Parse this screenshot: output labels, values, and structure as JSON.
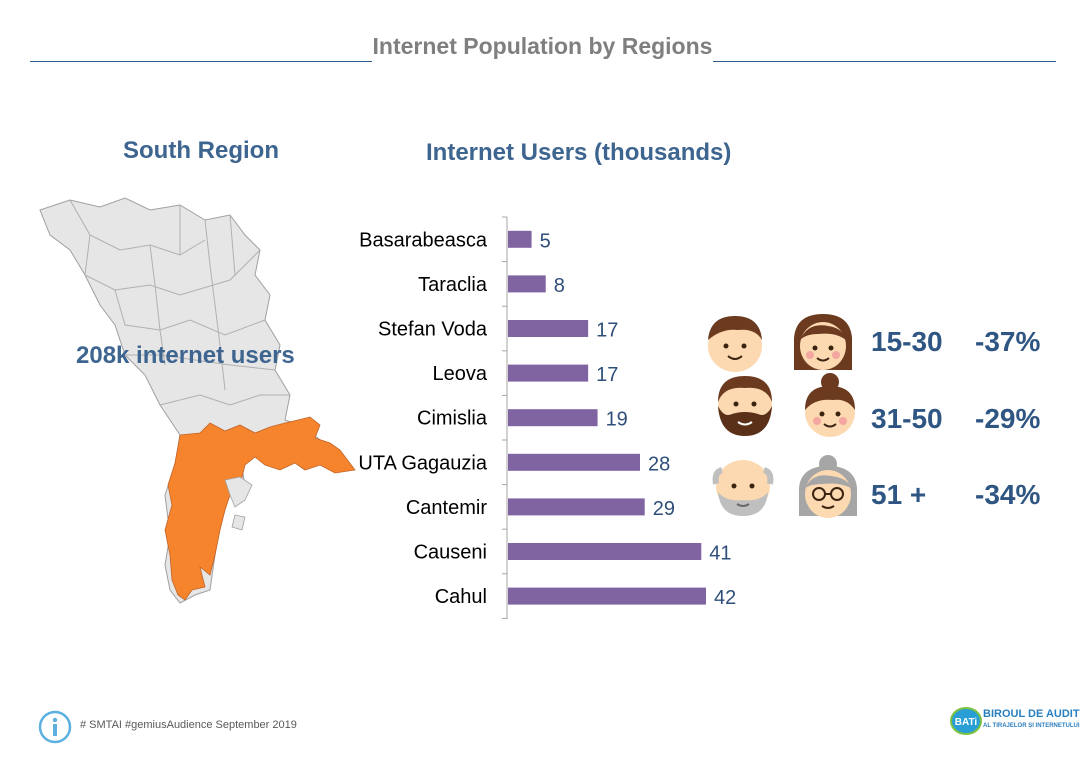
{
  "header": {
    "title": "Internet Population by Regions"
  },
  "region": {
    "title": "South Region",
    "users_label": "208k internet users"
  },
  "chart_data": {
    "type": "bar",
    "title": "Internet Users (thousands)",
    "categories": [
      "Basarabeasca",
      "Taraclia",
      "Stefan Voda",
      "Leova",
      "Cimislia",
      "UTA Gagauzia",
      "Cantemir",
      "Causeni",
      "Cahul"
    ],
    "values": [
      5,
      8,
      17,
      17,
      19,
      28,
      29,
      41,
      42
    ],
    "bar_color": "#8064a2",
    "orientation": "horizontal"
  },
  "age_groups": [
    {
      "range": "15-30",
      "change": "-37%"
    },
    {
      "range": "31-50",
      "change": "-29%"
    },
    {
      "range": "51 +",
      "change": "-34%"
    }
  ],
  "map": {
    "highlight_color": "#f6842c",
    "base_color": "#e6e6e6"
  },
  "footer": {
    "source": "# SMTAI #gemiusAudience September  2019",
    "logo_line1": "BIROUL DE AUDIT",
    "logo_line2": "AL TIRAJELOR ȘI INTERNETULUI",
    "logo_badge": "BATi"
  },
  "colors": {
    "title_blue": "#3d6590",
    "accent_blue": "#2f5583"
  }
}
